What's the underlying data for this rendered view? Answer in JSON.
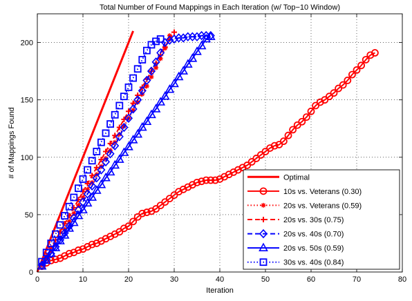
{
  "chart_data": {
    "type": "line",
    "title": "Total Number of Found Mappings in Each Iteration (w/ Top−10 Window)",
    "xlabel": "Iteration",
    "ylabel": "# of Mappings Found",
    "xlim": [
      0,
      80
    ],
    "ylim": [
      0,
      225
    ],
    "xticks": [
      0,
      10,
      20,
      30,
      40,
      50,
      60,
      70,
      80
    ],
    "yticks": [
      0,
      50,
      100,
      150,
      200
    ],
    "grid": true,
    "legend_position": "bottom-right",
    "series": [
      {
        "name": "Optimal",
        "color": "#ff0000",
        "dash": "solid",
        "marker": "none",
        "x": [
          0,
          21
        ],
        "y": [
          0,
          210
        ]
      },
      {
        "name": "10s vs. Veterans (0.30)",
        "color": "#ff0000",
        "dash": "solid",
        "marker": "circle",
        "x": [
          1,
          2,
          3,
          4,
          5,
          6,
          7,
          8,
          9,
          10,
          11,
          12,
          13,
          14,
          15,
          16,
          17,
          18,
          19,
          20,
          21,
          22,
          23,
          24,
          25,
          26,
          27,
          28,
          29,
          30,
          31,
          32,
          33,
          34,
          35,
          36,
          37,
          38,
          39,
          40,
          41,
          42,
          43,
          44,
          45,
          46,
          47,
          48,
          49,
          50,
          51,
          52,
          53,
          54,
          55,
          56,
          57,
          58,
          59,
          60,
          61,
          62,
          63,
          64,
          65,
          66,
          67,
          68,
          69,
          70,
          71,
          72,
          73,
          74
        ],
        "y": [
          5,
          8,
          10,
          11,
          12,
          14,
          16,
          17,
          19,
          20,
          22,
          24,
          25,
          27,
          29,
          31,
          33,
          35,
          38,
          40,
          44,
          48,
          51,
          52,
          53,
          55,
          58,
          61,
          64,
          67,
          70,
          72,
          74,
          76,
          78,
          79,
          80,
          80,
          80,
          81,
          83,
          85,
          87,
          89,
          91,
          93,
          96,
          99,
          102,
          105,
          108,
          110,
          111,
          114,
          119,
          124,
          128,
          131,
          135,
          140,
          145,
          148,
          150,
          153,
          156,
          160,
          163,
          167,
          172,
          176,
          180,
          185,
          189,
          191
        ]
      },
      {
        "name": "20s vs. Veterans (0.59)",
        "color": "#ff0000",
        "dash": "dotted",
        "marker": "star",
        "x": [
          1,
          2,
          3,
          4,
          5,
          6,
          7,
          8,
          9,
          10,
          11,
          12,
          13,
          14,
          15,
          16,
          17,
          18,
          19,
          20,
          21,
          22,
          23,
          24,
          25,
          26,
          27,
          28,
          29
        ],
        "y": [
          6,
          12,
          18,
          24,
          30,
          37,
          44,
          51,
          58,
          65,
          72,
          78,
          85,
          92,
          99,
          106,
          113,
          120,
          127,
          134,
          141,
          148,
          155,
          162,
          170,
          178,
          186,
          195,
          206
        ]
      },
      {
        "name": "20s vs. 30s (0.75)",
        "color": "#ff0000",
        "dash": "dashed",
        "marker": "plus",
        "x": [
          1,
          2,
          3,
          4,
          5,
          6,
          7,
          8,
          9,
          10,
          11,
          12,
          13,
          14,
          15,
          16,
          17,
          18,
          19,
          20,
          21,
          22,
          23,
          24,
          25,
          26,
          27,
          28,
          29,
          30
        ],
        "y": [
          7,
          14,
          21,
          28,
          35,
          42,
          49,
          56,
          63,
          70,
          77,
          84,
          91,
          98,
          105,
          112,
          119,
          126,
          133,
          140,
          147,
          154,
          161,
          168,
          175,
          182,
          189,
          196,
          203,
          209
        ]
      },
      {
        "name": "20s vs. 40s (0.70)",
        "color": "#0000ff",
        "dash": "dashed",
        "marker": "diamond",
        "x": [
          1,
          2,
          3,
          4,
          5,
          6,
          7,
          8,
          9,
          10,
          11,
          12,
          13,
          14,
          15,
          16,
          17,
          18,
          19,
          20,
          21,
          22,
          23,
          24,
          25,
          26,
          27,
          28,
          29,
          30,
          31,
          32,
          33,
          34,
          35,
          36,
          37,
          38
        ],
        "y": [
          6,
          11,
          16,
          22,
          28,
          34,
          40,
          47,
          54,
          61,
          68,
          75,
          82,
          89,
          96,
          103,
          110,
          118,
          126,
          134,
          142,
          150,
          158,
          167,
          175,
          183,
          191,
          200,
          202,
          203,
          204,
          204,
          205,
          205,
          205,
          206,
          206,
          206
        ]
      },
      {
        "name": "20s vs. 50s (0.59)",
        "color": "#0000ff",
        "dash": "solid",
        "marker": "triangle",
        "x": [
          1,
          2,
          3,
          4,
          5,
          6,
          7,
          8,
          9,
          10,
          11,
          12,
          13,
          14,
          15,
          16,
          17,
          18,
          19,
          20,
          21,
          22,
          23,
          24,
          25,
          26,
          27,
          28,
          29,
          30,
          31,
          32,
          33,
          34,
          35,
          36,
          37,
          38
        ],
        "y": [
          5,
          10,
          16,
          21,
          27,
          32,
          38,
          43,
          49,
          54,
          60,
          65,
          71,
          76,
          82,
          87,
          93,
          98,
          104,
          109,
          115,
          120,
          126,
          131,
          137,
          142,
          148,
          153,
          159,
          164,
          170,
          175,
          181,
          186,
          192,
          197,
          203,
          205
        ]
      },
      {
        "name": "30s vs. 40s (0.84)",
        "color": "#0000ff",
        "dash": "dotted",
        "marker": "square",
        "x": [
          1,
          2,
          3,
          4,
          5,
          6,
          7,
          8,
          9,
          10,
          11,
          12,
          13,
          14,
          15,
          16,
          17,
          18,
          19,
          20,
          21,
          22,
          23,
          24,
          25,
          26,
          27
        ],
        "y": [
          9,
          17,
          25,
          33,
          41,
          49,
          57,
          65,
          73,
          81,
          89,
          97,
          105,
          113,
          121,
          129,
          137,
          145,
          153,
          161,
          169,
          177,
          185,
          193,
          198,
          201,
          203
        ]
      }
    ]
  }
}
